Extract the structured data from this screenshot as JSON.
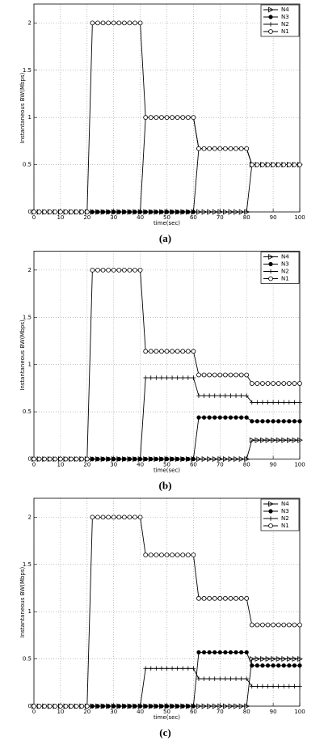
{
  "chart_data": [
    {
      "type": "line",
      "caption": "(a)",
      "xlabel": "time(sec)",
      "ylabel": "Instantaneous BW(Mbps)",
      "x": [
        0,
        2,
        4,
        6,
        8,
        10,
        12,
        14,
        16,
        18,
        20,
        22,
        24,
        26,
        28,
        30,
        32,
        34,
        36,
        38,
        40,
        42,
        44,
        46,
        48,
        50,
        52,
        54,
        56,
        58,
        60,
        62,
        64,
        66,
        68,
        70,
        72,
        74,
        76,
        78,
        80,
        82,
        84,
        86,
        88,
        90,
        92,
        94,
        96,
        98,
        100
      ],
      "xlim": [
        0,
        100
      ],
      "xticks": [
        0,
        10,
        20,
        30,
        40,
        50,
        60,
        70,
        80,
        90,
        100
      ],
      "ylim": [
        0,
        2.2
      ],
      "yticks": [
        0,
        0.5,
        1,
        1.5,
        2
      ],
      "grid": true,
      "legend": "upper right",
      "series": [
        {
          "name": "N4",
          "color": "#000000",
          "marker": "triangle",
          "values": [
            0,
            0,
            0,
            0,
            0,
            0,
            0,
            0,
            0,
            0,
            0,
            0,
            0,
            0,
            0,
            0,
            0,
            0,
            0,
            0,
            0,
            0,
            0,
            0,
            0,
            0,
            0,
            0,
            0,
            0,
            0,
            0,
            0,
            0,
            0,
            0,
            0,
            0,
            0,
            0,
            0,
            0.5,
            0.5,
            0.5,
            0.5,
            0.5,
            0.5,
            0.5,
            0.5,
            0.5,
            0.5
          ]
        },
        {
          "name": "N3",
          "color": "#000000",
          "marker": "dot",
          "values": [
            0,
            0,
            0,
            0,
            0,
            0,
            0,
            0,
            0,
            0,
            0,
            0,
            0,
            0,
            0,
            0,
            0,
            0,
            0,
            0,
            0,
            0,
            0,
            0,
            0,
            0,
            0,
            0,
            0,
            0,
            0,
            0.67,
            0.67,
            0.67,
            0.67,
            0.67,
            0.67,
            0.67,
            0.67,
            0.67,
            0.67,
            0.5,
            0.5,
            0.5,
            0.5,
            0.5,
            0.5,
            0.5,
            0.5,
            0.5,
            0.5
          ]
        },
        {
          "name": "N2",
          "color": "#000000",
          "marker": "plus",
          "values": [
            0,
            0,
            0,
            0,
            0,
            0,
            0,
            0,
            0,
            0,
            0,
            0,
            0,
            0,
            0,
            0,
            0,
            0,
            0,
            0,
            0,
            1,
            1,
            1,
            1,
            1,
            1,
            1,
            1,
            1,
            1,
            0.67,
            0.67,
            0.67,
            0.67,
            0.67,
            0.67,
            0.67,
            0.67,
            0.67,
            0.67,
            0.5,
            0.5,
            0.5,
            0.5,
            0.5,
            0.5,
            0.5,
            0.5,
            0.5,
            0.5
          ]
        },
        {
          "name": "N1",
          "color": "#000000",
          "marker": "circle",
          "values": [
            0,
            0,
            0,
            0,
            0,
            0,
            0,
            0,
            0,
            0,
            0,
            2,
            2,
            2,
            2,
            2,
            2,
            2,
            2,
            2,
            2,
            1,
            1,
            1,
            1,
            1,
            1,
            1,
            1,
            1,
            1,
            0.67,
            0.67,
            0.67,
            0.67,
            0.67,
            0.67,
            0.67,
            0.67,
            0.67,
            0.67,
            0.5,
            0.5,
            0.5,
            0.5,
            0.5,
            0.5,
            0.5,
            0.5,
            0.5,
            0.5
          ]
        }
      ]
    },
    {
      "type": "line",
      "caption": "(b)",
      "xlabel": "time(sec)",
      "ylabel": "Instantaneous BW(Mbps)",
      "x": [
        0,
        2,
        4,
        6,
        8,
        10,
        12,
        14,
        16,
        18,
        20,
        22,
        24,
        26,
        28,
        30,
        32,
        34,
        36,
        38,
        40,
        42,
        44,
        46,
        48,
        50,
        52,
        54,
        56,
        58,
        60,
        62,
        64,
        66,
        68,
        70,
        72,
        74,
        76,
        78,
        80,
        82,
        84,
        86,
        88,
        90,
        92,
        94,
        96,
        98,
        100
      ],
      "xlim": [
        0,
        100
      ],
      "xticks": [
        0,
        10,
        20,
        30,
        40,
        50,
        60,
        70,
        80,
        90,
        100
      ],
      "ylim": [
        0,
        2.2
      ],
      "yticks": [
        0,
        0.5,
        1,
        1.5,
        2
      ],
      "grid": true,
      "legend": "upper right",
      "series": [
        {
          "name": "N4",
          "color": "#000000",
          "marker": "triangle",
          "values": [
            0,
            0,
            0,
            0,
            0,
            0,
            0,
            0,
            0,
            0,
            0,
            0,
            0,
            0,
            0,
            0,
            0,
            0,
            0,
            0,
            0,
            0,
            0,
            0,
            0,
            0,
            0,
            0,
            0,
            0,
            0,
            0,
            0,
            0,
            0,
            0,
            0,
            0,
            0,
            0,
            0,
            0.2,
            0.2,
            0.2,
            0.2,
            0.2,
            0.2,
            0.2,
            0.2,
            0.2,
            0.2
          ]
        },
        {
          "name": "N3",
          "color": "#000000",
          "marker": "dot",
          "values": [
            0,
            0,
            0,
            0,
            0,
            0,
            0,
            0,
            0,
            0,
            0,
            0,
            0,
            0,
            0,
            0,
            0,
            0,
            0,
            0,
            0,
            0,
            0,
            0,
            0,
            0,
            0,
            0,
            0,
            0,
            0,
            0.44,
            0.44,
            0.44,
            0.44,
            0.44,
            0.44,
            0.44,
            0.44,
            0.44,
            0.44,
            0.4,
            0.4,
            0.4,
            0.4,
            0.4,
            0.4,
            0.4,
            0.4,
            0.4,
            0.4
          ]
        },
        {
          "name": "N2",
          "color": "#000000",
          "marker": "plus",
          "values": [
            0,
            0,
            0,
            0,
            0,
            0,
            0,
            0,
            0,
            0,
            0,
            0,
            0,
            0,
            0,
            0,
            0,
            0,
            0,
            0,
            0,
            0.86,
            0.86,
            0.86,
            0.86,
            0.86,
            0.86,
            0.86,
            0.86,
            0.86,
            0.86,
            0.67,
            0.67,
            0.67,
            0.67,
            0.67,
            0.67,
            0.67,
            0.67,
            0.67,
            0.67,
            0.6,
            0.6,
            0.6,
            0.6,
            0.6,
            0.6,
            0.6,
            0.6,
            0.6,
            0.6
          ]
        },
        {
          "name": "N1",
          "color": "#000000",
          "marker": "circle",
          "values": [
            0,
            0,
            0,
            0,
            0,
            0,
            0,
            0,
            0,
            0,
            0,
            2,
            2,
            2,
            2,
            2,
            2,
            2,
            2,
            2,
            2,
            1.14,
            1.14,
            1.14,
            1.14,
            1.14,
            1.14,
            1.14,
            1.14,
            1.14,
            1.14,
            0.89,
            0.89,
            0.89,
            0.89,
            0.89,
            0.89,
            0.89,
            0.89,
            0.89,
            0.89,
            0.8,
            0.8,
            0.8,
            0.8,
            0.8,
            0.8,
            0.8,
            0.8,
            0.8,
            0.8
          ]
        }
      ]
    },
    {
      "type": "line",
      "caption": "(c)",
      "xlabel": "time(sec)",
      "ylabel": "Instantaneous BW(Mbps)",
      "x": [
        0,
        2,
        4,
        6,
        8,
        10,
        12,
        14,
        16,
        18,
        20,
        22,
        24,
        26,
        28,
        30,
        32,
        34,
        36,
        38,
        40,
        42,
        44,
        46,
        48,
        50,
        52,
        54,
        56,
        58,
        60,
        62,
        64,
        66,
        68,
        70,
        72,
        74,
        76,
        78,
        80,
        82,
        84,
        86,
        88,
        90,
        92,
        94,
        96,
        98,
        100
      ],
      "xlim": [
        0,
        100
      ],
      "xticks": [
        0,
        10,
        20,
        30,
        40,
        50,
        60,
        70,
        80,
        90,
        100
      ],
      "ylim": [
        0,
        2.2
      ],
      "yticks": [
        0,
        0.5,
        1,
        1.5,
        2
      ],
      "grid": true,
      "legend": "upper right",
      "series": [
        {
          "name": "N4",
          "color": "#000000",
          "marker": "triangle",
          "values": [
            0,
            0,
            0,
            0,
            0,
            0,
            0,
            0,
            0,
            0,
            0,
            0,
            0,
            0,
            0,
            0,
            0,
            0,
            0,
            0,
            0,
            0,
            0,
            0,
            0,
            0,
            0,
            0,
            0,
            0,
            0,
            0,
            0,
            0,
            0,
            0,
            0,
            0,
            0,
            0,
            0,
            0.5,
            0.5,
            0.5,
            0.5,
            0.5,
            0.5,
            0.5,
            0.5,
            0.5,
            0.5
          ]
        },
        {
          "name": "N3",
          "color": "#000000",
          "marker": "dot",
          "values": [
            0,
            0,
            0,
            0,
            0,
            0,
            0,
            0,
            0,
            0,
            0,
            0,
            0,
            0,
            0,
            0,
            0,
            0,
            0,
            0,
            0,
            0,
            0,
            0,
            0,
            0,
            0,
            0,
            0,
            0,
            0,
            0.57,
            0.57,
            0.57,
            0.57,
            0.57,
            0.57,
            0.57,
            0.57,
            0.57,
            0.57,
            0.43,
            0.43,
            0.43,
            0.43,
            0.43,
            0.43,
            0.43,
            0.43,
            0.43,
            0.43
          ]
        },
        {
          "name": "N2",
          "color": "#000000",
          "marker": "plus",
          "values": [
            0,
            0,
            0,
            0,
            0,
            0,
            0,
            0,
            0,
            0,
            0,
            0,
            0,
            0,
            0,
            0,
            0,
            0,
            0,
            0,
            0,
            0.4,
            0.4,
            0.4,
            0.4,
            0.4,
            0.4,
            0.4,
            0.4,
            0.4,
            0.4,
            0.29,
            0.29,
            0.29,
            0.29,
            0.29,
            0.29,
            0.29,
            0.29,
            0.29,
            0.29,
            0.21,
            0.21,
            0.21,
            0.21,
            0.21,
            0.21,
            0.21,
            0.21,
            0.21,
            0.21
          ]
        },
        {
          "name": "N1",
          "color": "#000000",
          "marker": "circle",
          "values": [
            0,
            0,
            0,
            0,
            0,
            0,
            0,
            0,
            0,
            0,
            0,
            2,
            2,
            2,
            2,
            2,
            2,
            2,
            2,
            2,
            2,
            1.6,
            1.6,
            1.6,
            1.6,
            1.6,
            1.6,
            1.6,
            1.6,
            1.6,
            1.6,
            1.14,
            1.14,
            1.14,
            1.14,
            1.14,
            1.14,
            1.14,
            1.14,
            1.14,
            1.14,
            0.86,
            0.86,
            0.86,
            0.86,
            0.86,
            0.86,
            0.86,
            0.86,
            0.86,
            0.86
          ]
        }
      ]
    }
  ]
}
